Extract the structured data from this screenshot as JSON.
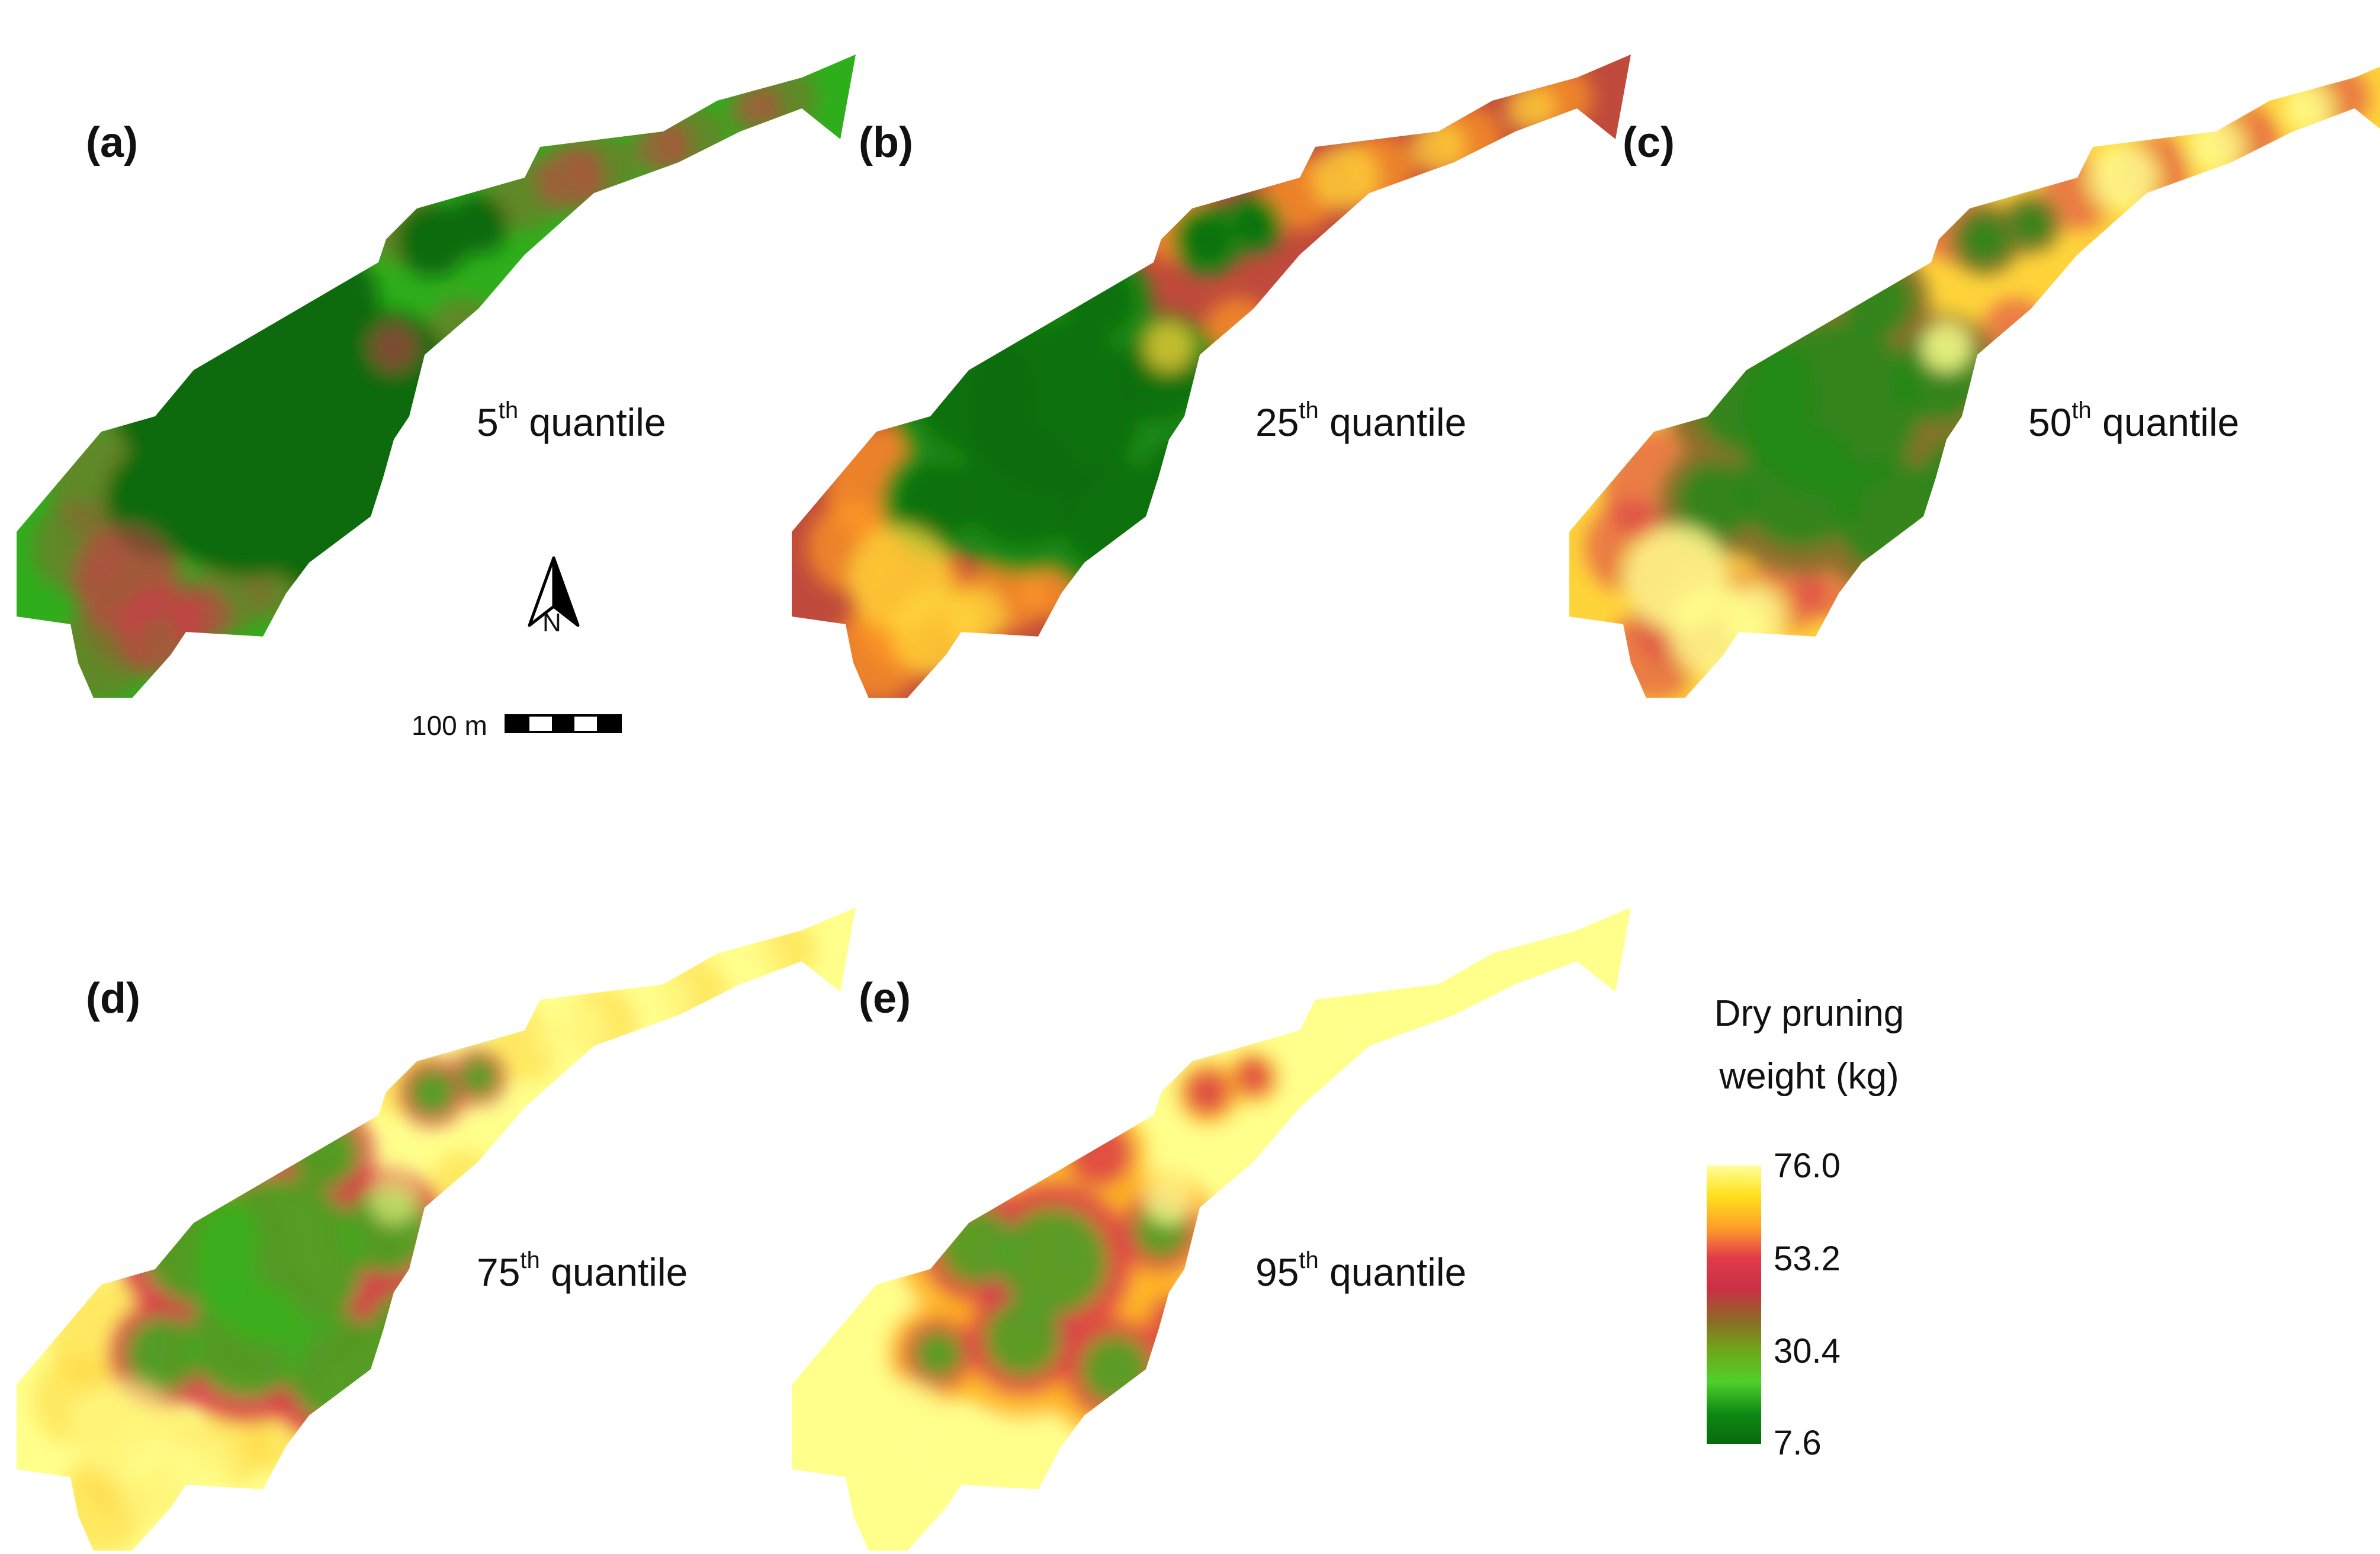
{
  "panels": [
    {
      "label": "(a)",
      "quantile_num": "5",
      "quantile_suffix": "th",
      "quantile_word": "quantile",
      "scheme": "low"
    },
    {
      "label": "(b)",
      "quantile_num": "25",
      "quantile_suffix": "th",
      "quantile_word": "quantile",
      "scheme": "lowmid"
    },
    {
      "label": "(c)",
      "quantile_num": "50",
      "quantile_suffix": "th",
      "quantile_word": "quantile",
      "scheme": "mid"
    },
    {
      "label": "(d)",
      "quantile_num": "75",
      "quantile_suffix": "th",
      "quantile_word": "quantile",
      "scheme": "highmid"
    },
    {
      "label": "(e)",
      "quantile_num": "95",
      "quantile_suffix": "th",
      "quantile_word": "quantile",
      "scheme": "high"
    }
  ],
  "north_arrow": {
    "label": "N"
  },
  "scale_bar": {
    "label": "100 m",
    "colors": [
      "#000000",
      "#ffffff",
      "#000000",
      "#ffffff",
      "#000000"
    ]
  },
  "legend": {
    "title_line1": "Dry pruning",
    "title_line2": "weight (kg)",
    "ticks": [
      "76.0",
      "53.2",
      "30.4",
      "7.6"
    ],
    "ramp_colors": [
      "#ffff99",
      "#ffe01a",
      "#ff9f2a",
      "#e23a4a",
      "#c93045",
      "#8c6a25",
      "#6ea81a",
      "#4fd02a",
      "#0f8a14",
      "#086a0c"
    ]
  },
  "colors": {
    "dark_green": "#0b6b10",
    "green": "#33b21c",
    "light_green": "#62d238",
    "olive": "#8b6f2c",
    "crimson": "#d9374a",
    "orange": "#ff9a22",
    "yellow": "#ffe83a",
    "pale_yellow": "#ffff8c"
  }
}
